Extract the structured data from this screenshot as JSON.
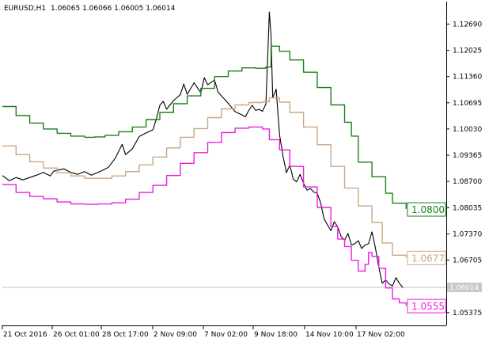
{
  "header": {
    "symbol": "EURUSD,H1",
    "ohlc": "1.06065 1.06066 1.06005 1.06014"
  },
  "chart_data": {
    "type": "line",
    "title": "EURUSD,H1",
    "ohlc": {
      "open": 1.06065,
      "high": 1.06066,
      "low": 1.06005,
      "close": 1.06014
    },
    "ylim": [
      1.0505,
      1.1326
    ],
    "y_ticks": [
      1.1269,
      1.12025,
      1.1136,
      1.10695,
      1.1003,
      1.09365,
      1.087,
      1.08035,
      1.0737,
      1.06705,
      1.05375
    ],
    "y_tick_labels": [
      "1.12690",
      "1.12025",
      "1.11360",
      "1.10695",
      "1.10030",
      "1.09365",
      "1.08700",
      "1.08035",
      "1.07370",
      "1.06705",
      "1.05375"
    ],
    "x": [
      "21 Oct 2016",
      "26 Oct 01:00",
      "28 Oct 17:00",
      "2 Nov 09:00",
      "7 Nov 02:00",
      "9 Nov 18:00",
      "14 Nov 10:00",
      "17 Nov 02:00"
    ],
    "x_tick_labels": [
      "21 Oct 2016",
      "26 Oct 01:00",
      "28 Oct 17:00",
      "2 Nov 09:00",
      "7 Nov 02:00",
      "9 Nov 18:00",
      "14 Nov 10:00",
      "17 Nov 02:00"
    ],
    "grid": false,
    "series": [
      {
        "key": "price",
        "color": "#000000",
        "points": [
          [
            0,
            1.0885
          ],
          [
            2,
            1.0872
          ],
          [
            4,
            1.088
          ],
          [
            6,
            1.0874
          ],
          [
            8,
            1.088
          ],
          [
            10,
            1.0886
          ],
          [
            12,
            1.0893
          ],
          [
            14,
            1.0884
          ],
          [
            15,
            1.0896
          ],
          [
            18,
            1.0902
          ],
          [
            20,
            1.0893
          ],
          [
            22,
            1.0888
          ],
          [
            24,
            1.0895
          ],
          [
            26,
            1.0886
          ],
          [
            29,
            1.0897
          ],
          [
            31,
            1.0906
          ],
          [
            33,
            1.0929
          ],
          [
            35,
            1.0964
          ],
          [
            36,
            1.0938
          ],
          [
            38,
            1.0953
          ],
          [
            40,
            1.0984
          ],
          [
            42,
            1.0993
          ],
          [
            44,
            1.1001
          ],
          [
            45,
            1.1029
          ],
          [
            46,
            1.1063
          ],
          [
            47,
            1.1073
          ],
          [
            48,
            1.1053
          ],
          [
            50,
            1.1075
          ],
          [
            52,
            1.109
          ],
          [
            53,
            1.1117
          ],
          [
            54,
            1.1091
          ],
          [
            56,
            1.112
          ],
          [
            58,
            1.1095
          ],
          [
            59,
            1.1133
          ],
          [
            60,
            1.1115
          ],
          [
            62,
            1.1127
          ],
          [
            63,
            1.1097
          ],
          [
            64,
            1.1087
          ],
          [
            66,
            1.1068
          ],
          [
            68,
            1.1047
          ],
          [
            70,
            1.1039
          ],
          [
            71,
            1.1034
          ],
          [
            72,
            1.105
          ],
          [
            73,
            1.1063
          ],
          [
            74,
            1.105
          ],
          [
            75,
            1.1053
          ],
          [
            76,
            1.1048
          ],
          [
            77,
            1.1066
          ],
          [
            77.5,
            1.118
          ],
          [
            78,
            1.13
          ],
          [
            78.5,
            1.124
          ],
          [
            79,
            1.1082
          ],
          [
            80,
            1.1104
          ],
          [
            81,
            1.0988
          ],
          [
            82,
            1.0934
          ],
          [
            83,
            1.0892
          ],
          [
            84,
            1.0912
          ],
          [
            85,
            1.0876
          ],
          [
            86,
            1.0869
          ],
          [
            87,
            1.0888
          ],
          [
            88,
            1.0866
          ],
          [
            89,
            1.0848
          ],
          [
            90,
            1.0852
          ],
          [
            91,
            1.0843
          ],
          [
            92,
            1.084
          ],
          [
            93,
            1.0816
          ],
          [
            94,
            1.0775
          ],
          [
            95,
            1.076
          ],
          [
            96,
            1.0745
          ],
          [
            97,
            1.0768
          ],
          [
            98,
            1.0755
          ],
          [
            99,
            1.073
          ],
          [
            100,
            1.0721
          ],
          [
            101,
            1.0738
          ],
          [
            102,
            1.0709
          ],
          [
            103,
            1.0712
          ],
          [
            104,
            1.072
          ],
          [
            105,
            1.07
          ],
          [
            106,
            1.0709
          ],
          [
            107,
            1.0712
          ],
          [
            108,
            1.0742
          ],
          [
            109,
            1.0702
          ],
          [
            110,
            1.0652
          ],
          [
            111,
            1.0612
          ],
          [
            112,
            1.062
          ],
          [
            113,
            1.061
          ],
          [
            114,
            1.0605
          ],
          [
            115,
            1.0626
          ],
          [
            116,
            1.0612
          ],
          [
            117,
            1.0601
          ]
        ]
      },
      {
        "key": "upper",
        "color": "#1e8018",
        "points": [
          [
            0,
            1.106
          ],
          [
            4,
            1.1037
          ],
          [
            8,
            1.1018
          ],
          [
            12,
            1.1003
          ],
          [
            16,
            1.0992
          ],
          [
            20,
            1.0985
          ],
          [
            24,
            1.0982
          ],
          [
            27,
            1.0983
          ],
          [
            30,
            1.0987
          ],
          [
            34,
            1.0996
          ],
          [
            38,
            1.1008
          ],
          [
            42,
            1.1027
          ],
          [
            46,
            1.1045
          ],
          [
            50,
            1.1067
          ],
          [
            54,
            1.1087
          ],
          [
            58,
            1.1106
          ],
          [
            62,
            1.1136
          ],
          [
            66,
            1.115
          ],
          [
            70,
            1.1158
          ],
          [
            74,
            1.1157
          ],
          [
            77,
            1.116
          ],
          [
            78.5,
            1.1213
          ],
          [
            81,
            1.12
          ],
          [
            84,
            1.1178
          ],
          [
            88,
            1.1147
          ],
          [
            92,
            1.1108
          ],
          [
            96,
            1.1064
          ],
          [
            100,
            1.102
          ],
          [
            102,
            1.0985
          ],
          [
            104,
            1.0919
          ],
          [
            108,
            1.0882
          ],
          [
            112,
            1.084
          ],
          [
            114,
            1.0815
          ],
          [
            118,
            1.08
          ]
        ]
      },
      {
        "key": "middle",
        "color": "#c8a882",
        "points": [
          [
            0,
            1.096
          ],
          [
            4,
            1.0938
          ],
          [
            8,
            1.092
          ],
          [
            12,
            1.0904
          ],
          [
            16,
            1.0892
          ],
          [
            20,
            1.0884
          ],
          [
            24,
            1.0878
          ],
          [
            28,
            1.0878
          ],
          [
            32,
            1.0884
          ],
          [
            36,
            1.0895
          ],
          [
            40,
            1.0912
          ],
          [
            44,
            1.0932
          ],
          [
            48,
            1.0955
          ],
          [
            52,
            1.0982
          ],
          [
            56,
            1.1004
          ],
          [
            60,
            1.1032
          ],
          [
            64,
            1.1054
          ],
          [
            68,
            1.1064
          ],
          [
            72,
            1.107
          ],
          [
            76,
            1.1072
          ],
          [
            78,
            1.1082
          ],
          [
            81,
            1.1071
          ],
          [
            84,
            1.1045
          ],
          [
            88,
            1.1008
          ],
          [
            92,
            1.0963
          ],
          [
            96,
            1.0908
          ],
          [
            100,
            1.0853
          ],
          [
            104,
            1.0808
          ],
          [
            108,
            1.0766
          ],
          [
            111,
            1.0714
          ],
          [
            114,
            1.0683
          ],
          [
            118,
            1.0677
          ]
        ]
      },
      {
        "key": "lower",
        "color": "#e81ee0",
        "points": [
          [
            0,
            1.0862
          ],
          [
            4,
            1.0842
          ],
          [
            8,
            1.0832
          ],
          [
            12,
            1.0826
          ],
          [
            16,
            1.0818
          ],
          [
            20,
            1.0813
          ],
          [
            24,
            1.0812
          ],
          [
            28,
            1.0813
          ],
          [
            32,
            1.0816
          ],
          [
            36,
            1.0825
          ],
          [
            40,
            1.0842
          ],
          [
            44,
            1.086
          ],
          [
            48,
            1.0885
          ],
          [
            52,
            1.0916
          ],
          [
            56,
            1.0943
          ],
          [
            60,
            1.0969
          ],
          [
            64,
            1.0994
          ],
          [
            68,
            1.1005
          ],
          [
            72,
            1.1008
          ],
          [
            76,
            1.1003
          ],
          [
            78,
            1.0976
          ],
          [
            81,
            1.095
          ],
          [
            84,
            1.0908
          ],
          [
            88,
            1.0856
          ],
          [
            92,
            1.0804
          ],
          [
            96,
            1.0756
          ],
          [
            98,
            1.0724
          ],
          [
            100,
            1.0705
          ],
          [
            102,
            1.067
          ],
          [
            104,
            1.0643
          ],
          [
            106,
            1.066
          ],
          [
            107,
            1.069
          ],
          [
            108,
            1.068
          ],
          [
            110,
            1.065
          ],
          [
            112,
            1.06
          ],
          [
            114,
            1.0572
          ],
          [
            116,
            1.0562
          ],
          [
            118,
            1.0555
          ]
        ]
      }
    ],
    "current_price": {
      "value": 1.06014,
      "label": "1.06014"
    },
    "level_labels": [
      {
        "value": 1.08,
        "label": "1.0800",
        "color": "#1e8018"
      },
      {
        "value": 1.0677,
        "label": "1.0677",
        "color": "#c8a882"
      },
      {
        "value": 1.0555,
        "label": "1.0555",
        "color": "#e81ee0"
      }
    ]
  }
}
